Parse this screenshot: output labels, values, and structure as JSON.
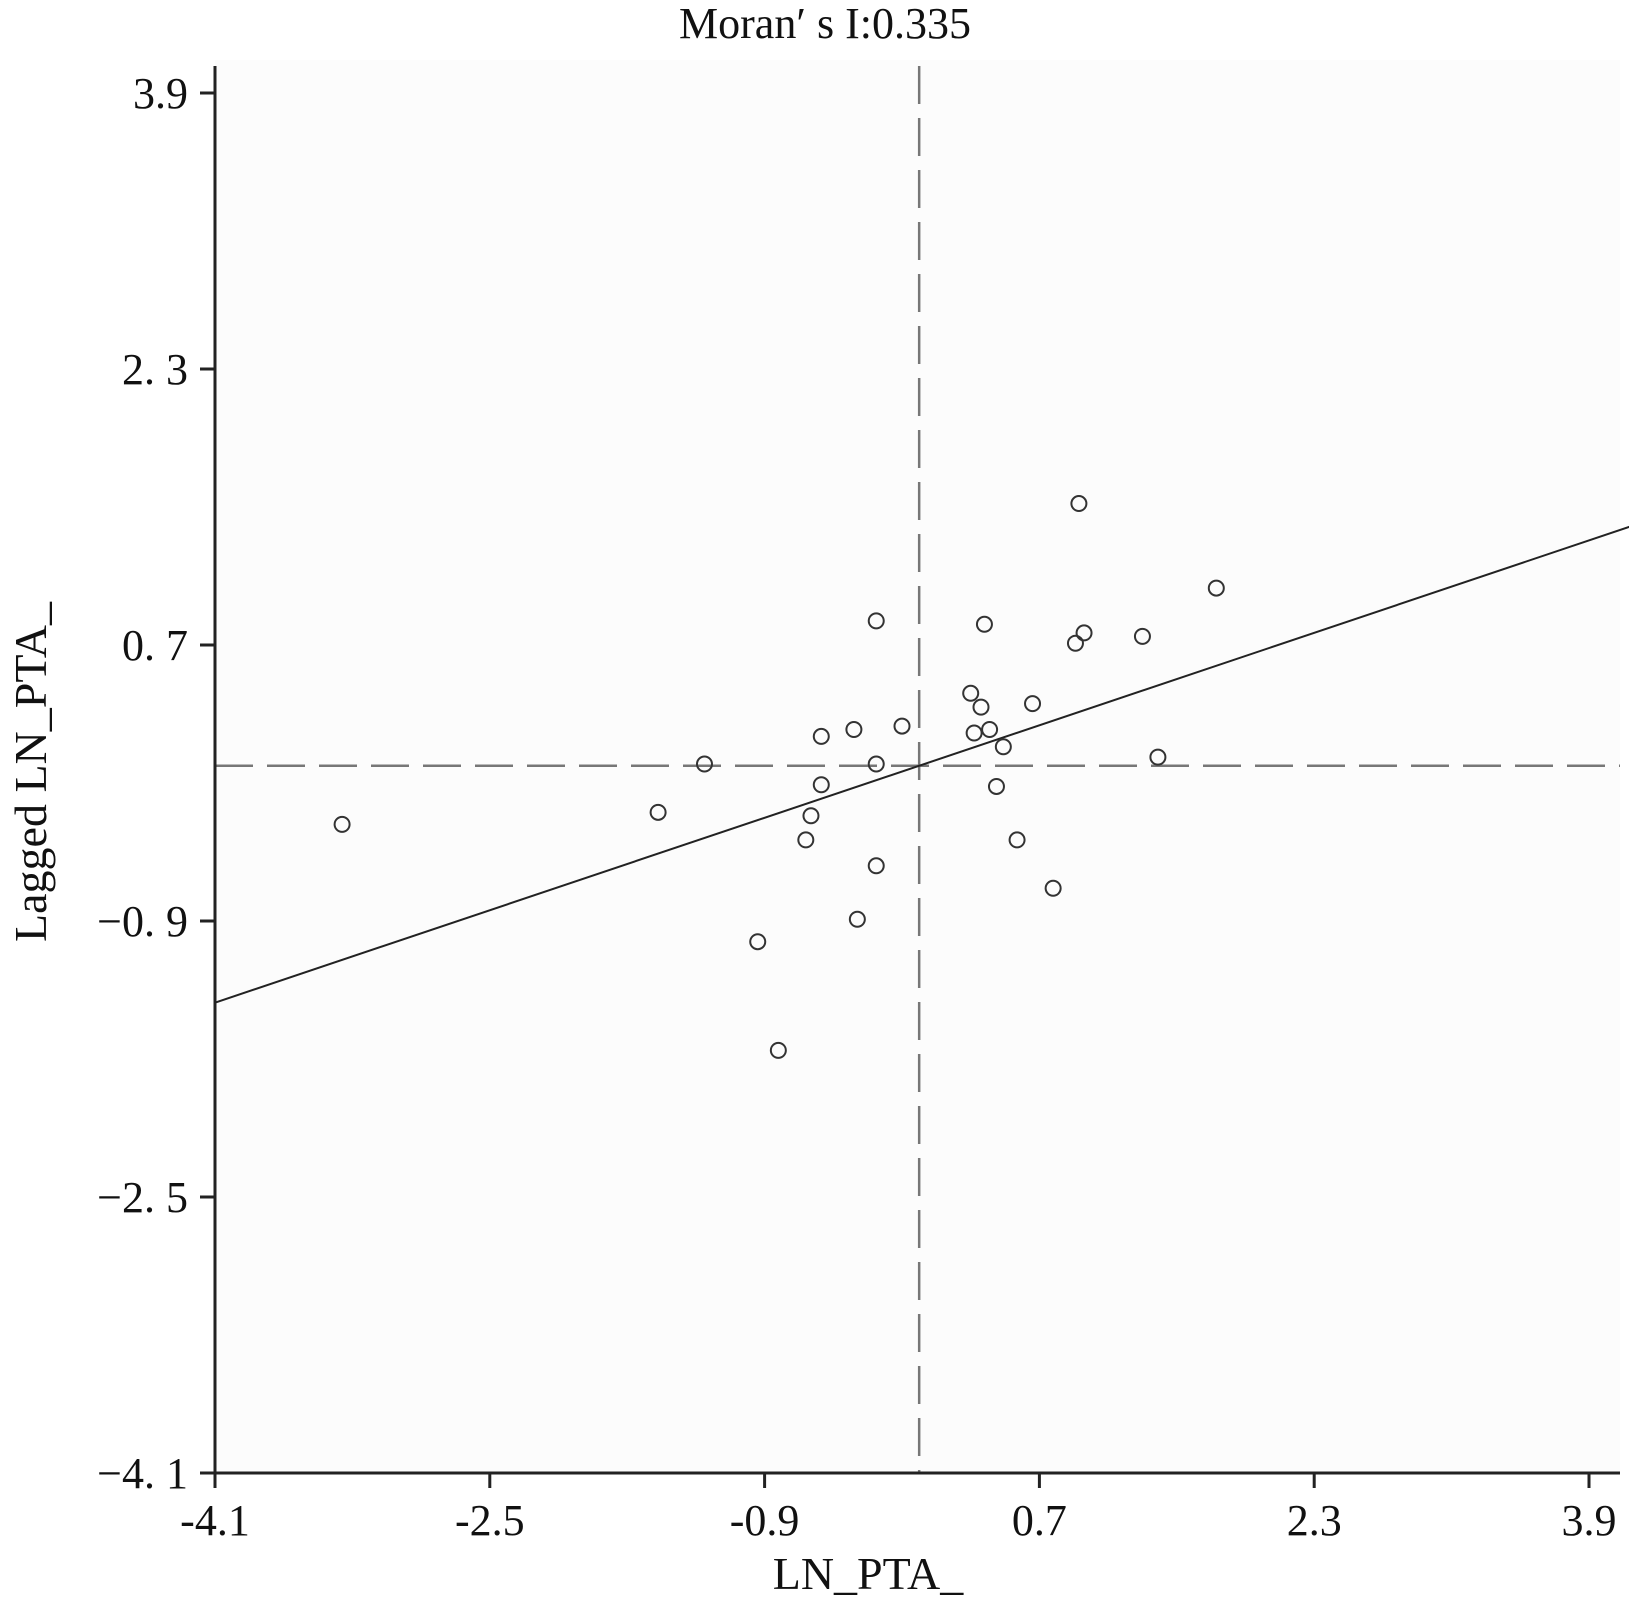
{
  "chart_data": {
    "type": "scatter",
    "title": "Moran′ s I:0.335",
    "xlabel": "LN_PTA_",
    "ylabel": "Lagged LN_PTA_",
    "xlim": [
      -4.1,
      4.1
    ],
    "ylim": [
      -4.1,
      4.1
    ],
    "xticks": [
      -4.1,
      -2.5,
      -0.9,
      0.7,
      2.3,
      3.9
    ],
    "xtick_labels": [
      "-4.1",
      "-2.5",
      "-0.9",
      "0.7",
      "2.3",
      "3.9"
    ],
    "yticks": [
      3.9,
      2.3,
      0.7,
      -0.9,
      -2.5,
      -4.1
    ],
    "ytick_labels": [
      "3.9",
      "2. 3",
      "0. 7",
      "−0. 9",
      "−2. 5",
      "−4. 1"
    ],
    "reference_lines": {
      "x_mean": 0.0,
      "y_mean": 0.0,
      "style": "dashed"
    },
    "regression_line": {
      "slope": 0.335,
      "intercept": 0.0
    },
    "points": [
      {
        "x": -3.36,
        "y": -0.34
      },
      {
        "x": -1.52,
        "y": -0.27
      },
      {
        "x": -1.25,
        "y": 0.01
      },
      {
        "x": -0.94,
        "y": -1.02
      },
      {
        "x": -0.82,
        "y": -1.65
      },
      {
        "x": -0.66,
        "y": -0.43
      },
      {
        "x": -0.63,
        "y": -0.29
      },
      {
        "x": -0.57,
        "y": -0.11
      },
      {
        "x": -0.57,
        "y": 0.17
      },
      {
        "x": -0.38,
        "y": 0.21
      },
      {
        "x": -0.36,
        "y": -0.89
      },
      {
        "x": -0.25,
        "y": 0.84
      },
      {
        "x": -0.25,
        "y": 0.01
      },
      {
        "x": -0.25,
        "y": -0.58
      },
      {
        "x": -0.1,
        "y": 0.23
      },
      {
        "x": 0.3,
        "y": 0.42
      },
      {
        "x": 0.32,
        "y": 0.19
      },
      {
        "x": 0.36,
        "y": 0.34
      },
      {
        "x": 0.38,
        "y": 0.82
      },
      {
        "x": 0.41,
        "y": 0.21
      },
      {
        "x": 0.45,
        "y": -0.12
      },
      {
        "x": 0.49,
        "y": 0.11
      },
      {
        "x": 0.57,
        "y": -0.43
      },
      {
        "x": 0.66,
        "y": 0.36
      },
      {
        "x": 0.78,
        "y": -0.71
      },
      {
        "x": 0.91,
        "y": 0.71
      },
      {
        "x": 0.93,
        "y": 1.52
      },
      {
        "x": 0.96,
        "y": 0.77
      },
      {
        "x": 1.3,
        "y": 0.75
      },
      {
        "x": 1.39,
        "y": 0.05
      },
      {
        "x": 1.73,
        "y": 1.03
      }
    ]
  }
}
